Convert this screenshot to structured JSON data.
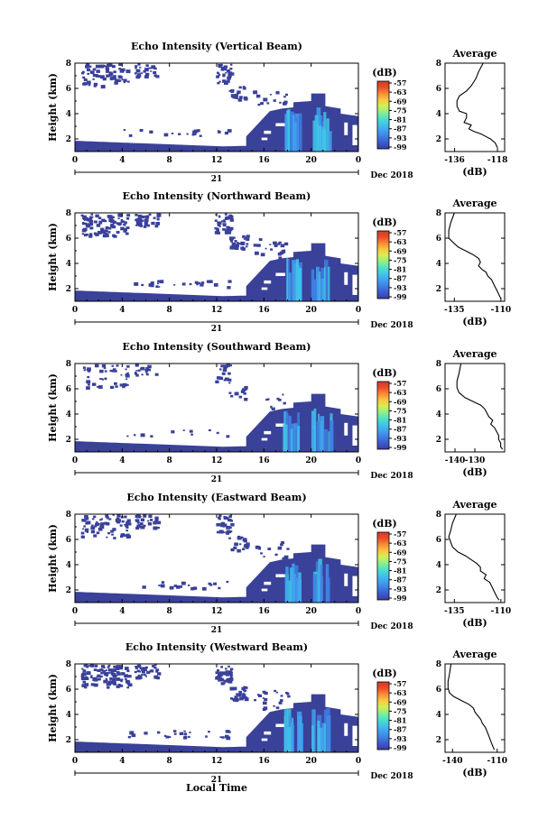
{
  "chart_data": [
    {
      "type": "heatmap",
      "title": "Echo Intensity (Vertical Beam)",
      "ylabel": "Height (km)",
      "x_ticks": [
        "0",
        "4",
        "8",
        "12",
        "16",
        "20",
        "0"
      ],
      "y_ticks": [
        "2",
        "4",
        "6",
        "8"
      ],
      "xlim": [
        0,
        24
      ],
      "ylim": [
        1,
        8
      ],
      "date_marker": "21",
      "date_label": "Dec 2018",
      "colorbar": {
        "unit": "(dB)",
        "levels": [
          "-57",
          "-63",
          "-69",
          "-75",
          "-81",
          "-87",
          "-93",
          "-99"
        ]
      },
      "average_profile": {
        "title": "Average",
        "xlabel": "(dB)",
        "x_ticks": [
          "-136",
          "-118"
        ],
        "y_ticks": [
          "2",
          "4",
          "6",
          "8"
        ],
        "xlim": [
          -140,
          -115
        ],
        "ylim": [
          1,
          8
        ],
        "x": [
          -124,
          -126,
          -127,
          -128,
          -129,
          -131,
          -134,
          -135,
          -135,
          -134,
          -131,
          -131,
          -132,
          -129,
          -130,
          -128,
          -125,
          -123,
          -121,
          -119,
          -118
        ],
        "y": [
          8,
          7.3,
          6.8,
          6.5,
          6.2,
          5.8,
          5.4,
          5.0,
          4.6,
          4.2,
          4.0,
          3.7,
          3.3,
          3.1,
          2.8,
          2.6,
          2.4,
          2.2,
          2.0,
          1.7,
          1.3
        ]
      }
    },
    {
      "type": "heatmap",
      "title": "Echo Intensity (Northward Beam)",
      "ylabel": "Height (km)",
      "x_ticks": [
        "0",
        "4",
        "8",
        "12",
        "16",
        "20",
        "0"
      ],
      "y_ticks": [
        "2",
        "4",
        "6",
        "8"
      ],
      "xlim": [
        0,
        24
      ],
      "ylim": [
        1,
        8
      ],
      "date_marker": "21",
      "date_label": "Dec 2018",
      "colorbar": {
        "unit": "(dB)",
        "levels": [
          "-57",
          "-63",
          "-69",
          "-75",
          "-81",
          "-87",
          "-93",
          "-99"
        ]
      },
      "average_profile": {
        "title": "Average",
        "xlabel": "(dB)",
        "x_ticks": [
          "-135",
          "-110"
        ],
        "y_ticks": [
          "2",
          "4",
          "6",
          "8"
        ],
        "xlim": [
          -140,
          -108
        ],
        "ylim": [
          1,
          8
        ],
        "x": [
          -135,
          -137,
          -138,
          -138,
          -136,
          -133,
          -129,
          -125,
          -122,
          -121,
          -122,
          -120,
          -118,
          -117,
          -115,
          -114,
          -113,
          -112,
          -111,
          -110
        ],
        "y": [
          8,
          7.2,
          6.6,
          6.0,
          5.7,
          5.3,
          5.0,
          4.7,
          4.4,
          4.1,
          3.8,
          3.5,
          3.3,
          3.0,
          2.7,
          2.4,
          2.1,
          1.8,
          1.5,
          1.2
        ]
      }
    },
    {
      "type": "heatmap",
      "title": "Echo Intensity (Southward Beam)",
      "ylabel": "Height (km)",
      "x_ticks": [
        "0",
        "4",
        "8",
        "12",
        "16",
        "20",
        "0"
      ],
      "y_ticks": [
        "2",
        "4",
        "6",
        "8"
      ],
      "xlim": [
        0,
        24
      ],
      "ylim": [
        1,
        8
      ],
      "date_marker": "21",
      "date_label": "Dec 2018",
      "colorbar": {
        "unit": "(dB)",
        "levels": [
          "-57",
          "-63",
          "-69",
          "-75",
          "-81",
          "-87",
          "-93",
          "-99"
        ]
      },
      "average_profile": {
        "title": "Average",
        "xlabel": "(dB)",
        "x_ticks": [
          "-140",
          "-130"
        ],
        "y_ticks": [
          "2",
          "4",
          "6",
          "8"
        ],
        "xlim": [
          -145,
          -115
        ],
        "ylim": [
          1,
          8
        ],
        "x": [
          -137,
          -138,
          -139,
          -139,
          -138,
          -135,
          -131,
          -127,
          -125,
          -124,
          -123,
          -121,
          -122,
          -120,
          -119,
          -118,
          -118,
          -117,
          -117,
          -116
        ],
        "y": [
          8,
          7.2,
          6.6,
          6.1,
          5.7,
          5.3,
          5.0,
          4.7,
          4.4,
          4.1,
          3.8,
          3.5,
          3.2,
          2.9,
          2.6,
          2.3,
          2.0,
          1.7,
          1.4,
          1.2
        ]
      }
    },
    {
      "type": "heatmap",
      "title": "Echo Intensity (Eastward Beam)",
      "ylabel": "Height (km)",
      "x_ticks": [
        "0",
        "4",
        "8",
        "12",
        "16",
        "20",
        "0"
      ],
      "y_ticks": [
        "2",
        "4",
        "6",
        "8"
      ],
      "xlim": [
        0,
        24
      ],
      "ylim": [
        1,
        8
      ],
      "date_marker": "21",
      "date_label": "Dec 2018",
      "colorbar": {
        "unit": "(dB)",
        "levels": [
          "-57",
          "-63",
          "-69",
          "-75",
          "-81",
          "-87",
          "-93",
          "-99"
        ]
      },
      "average_profile": {
        "title": "Average",
        "xlabel": "(dB)",
        "x_ticks": [
          "-135",
          "-110"
        ],
        "y_ticks": [
          "2",
          "4",
          "6",
          "8"
        ],
        "xlim": [
          -140,
          -108
        ],
        "ylim": [
          1,
          8
        ],
        "x": [
          -134,
          -136,
          -137,
          -138,
          -137,
          -136,
          -133,
          -129,
          -126,
          -123,
          -121,
          -121,
          -118,
          -119,
          -116,
          -115,
          -114,
          -113,
          -112,
          -111
        ],
        "y": [
          8,
          7.3,
          6.7,
          6.2,
          5.8,
          5.4,
          5.0,
          4.7,
          4.4,
          4.1,
          3.8,
          3.5,
          3.2,
          2.9,
          2.6,
          2.3,
          2.0,
          1.7,
          1.4,
          1.2
        ]
      }
    },
    {
      "type": "heatmap",
      "title": "Echo Intensity (Westward Beam)",
      "ylabel": "Height (km)",
      "xlabel": "Local Time",
      "x_ticks": [
        "0",
        "4",
        "8",
        "12",
        "16",
        "20",
        "0"
      ],
      "y_ticks": [
        "2",
        "4",
        "6",
        "8"
      ],
      "xlim": [
        0,
        24
      ],
      "ylim": [
        1,
        8
      ],
      "date_marker": "21",
      "date_label": "Dec 2018",
      "colorbar": {
        "unit": "(dB)",
        "levels": [
          "-57",
          "-63",
          "-69",
          "-75",
          "-81",
          "-87",
          "-93",
          "-99"
        ]
      },
      "average_profile": {
        "title": "Average",
        "xlabel": "(dB)",
        "x_ticks": [
          "-140",
          "-110"
        ],
        "y_ticks": [
          "2",
          "4",
          "6",
          "8"
        ],
        "xlim": [
          -145,
          -105
        ],
        "ylim": [
          1,
          8
        ],
        "x": [
          -141,
          -142,
          -143,
          -143,
          -142,
          -139,
          -134,
          -129,
          -126,
          -125,
          -123,
          -121,
          -120,
          -118,
          -117,
          -116,
          -115,
          -114,
          -113,
          -112
        ],
        "y": [
          8,
          7.2,
          6.6,
          6.1,
          5.7,
          5.4,
          5.1,
          4.8,
          4.5,
          4.2,
          3.9,
          3.6,
          3.3,
          3.0,
          2.7,
          2.4,
          2.1,
          1.8,
          1.5,
          1.2
        ]
      }
    }
  ],
  "colors": {
    "background_echo": "#3a4199",
    "colorbar_scale": [
      "#3a3d9e",
      "#3c5ad0",
      "#3f7fe3",
      "#41a3f0",
      "#3fc6e8",
      "#4ee3c4",
      "#8ef08a",
      "#d7ef50",
      "#fbc640",
      "#fa8a34",
      "#ec4b2b",
      "#d63a25"
    ]
  }
}
